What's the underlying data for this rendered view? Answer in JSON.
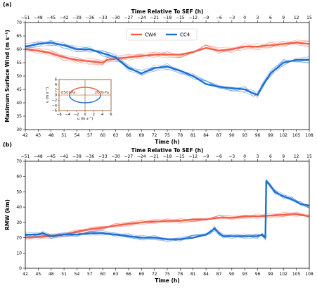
{
  "chart_data": [
    {
      "type": "line",
      "panel_label": "(a)",
      "xlabel": "Time (h)",
      "top_xlabel": "Time Relative To SEF (h)",
      "ylabel": "Maximum Surface Wind (m s⁻¹)",
      "xlim": [
        42,
        108
      ],
      "ylim": [
        30,
        70
      ],
      "x_ticks": [
        42,
        45,
        48,
        51,
        54,
        57,
        60,
        63,
        66,
        69,
        72,
        75,
        78,
        81,
        84,
        87,
        90,
        93,
        96,
        99,
        102,
        105,
        108
      ],
      "top_ticks": [
        -51,
        -48,
        -45,
        -42,
        -39,
        -36,
        -33,
        -30,
        -27,
        -24,
        -21,
        -18,
        -15,
        -12,
        -9,
        -6,
        -3,
        0,
        3,
        6,
        9,
        12,
        15
      ],
      "y_ticks": [
        30,
        35,
        40,
        45,
        50,
        55,
        60,
        65,
        70
      ],
      "legend_position": "top-center",
      "grid": false,
      "series": [
        {
          "name": "CW4",
          "color": "#f0604a",
          "x": [
            42,
            45,
            48,
            51,
            54,
            57,
            60,
            61,
            63,
            66,
            69,
            72,
            75,
            78,
            81,
            84,
            87,
            90,
            93,
            96,
            99,
            102,
            105,
            108
          ],
          "y": [
            60,
            59.5,
            58.5,
            57,
            56,
            55.5,
            55,
            56,
            56.5,
            57,
            57.5,
            58,
            58,
            58,
            59,
            60.5,
            59.5,
            60,
            61,
            61,
            61.5,
            62,
            62.5,
            62
          ]
        },
        {
          "name": "CC4",
          "color": "#1c6fd2",
          "x": [
            42,
            45,
            48,
            51,
            54,
            57,
            60,
            63,
            66,
            69,
            72,
            75,
            78,
            81,
            84,
            87,
            90,
            93,
            95,
            96,
            97,
            99,
            102,
            105,
            108
          ],
          "y": [
            61,
            62,
            62.5,
            61.5,
            60,
            60,
            58.5,
            57,
            53,
            51,
            53,
            53.5,
            52,
            50,
            47,
            46,
            45.5,
            45,
            43.5,
            43,
            46,
            51,
            55,
            56,
            56
          ]
        }
      ],
      "inset": {
        "xlabel": "u (m s⁻¹)",
        "ylabel": "v (m s⁻¹)",
        "xlim": [
          -6,
          6
        ],
        "ylim": [
          -6,
          6
        ],
        "x_ticks": [
          -6,
          -4,
          -2,
          0,
          2,
          4,
          6
        ],
        "y_ticks": [
          -6,
          -4,
          -2,
          0,
          2,
          4,
          6
        ],
        "label_left": "850hPa",
        "label_right": "200hPa",
        "ellipse_rx": 3.6,
        "ellipse_ry": 3.0,
        "upper_color": "#f0604a",
        "lower_color": "#1c6fd2"
      }
    },
    {
      "type": "line",
      "panel_label": "(b)",
      "xlabel": "Time (h)",
      "top_xlabel": "Time Relative To SEF (h)",
      "ylabel": "RMW (km)",
      "xlim": [
        42,
        108
      ],
      "ylim": [
        0,
        70
      ],
      "x_ticks": [
        42,
        45,
        48,
        51,
        54,
        57,
        60,
        63,
        66,
        69,
        72,
        75,
        78,
        81,
        84,
        87,
        90,
        93,
        96,
        99,
        102,
        105,
        108
      ],
      "top_ticks": [
        -51,
        -48,
        -45,
        -42,
        -39,
        -36,
        -33,
        -30,
        -27,
        -24,
        -21,
        -18,
        -15,
        -12,
        -9,
        -6,
        -3,
        0,
        3,
        6,
        9,
        12,
        15
      ],
      "y_ticks": [
        0,
        10,
        20,
        30,
        40,
        50,
        60,
        70
      ],
      "grid": false,
      "series": [
        {
          "name": "CW4",
          "color": "#f0604a",
          "x": [
            42,
            45,
            48,
            51,
            54,
            57,
            60,
            63,
            66,
            69,
            72,
            75,
            78,
            81,
            84,
            87,
            90,
            93,
            96,
            99,
            102,
            105,
            108
          ],
          "y": [
            20,
            20.5,
            21,
            22,
            24,
            25.5,
            26.5,
            28,
            29,
            30,
            30.5,
            31,
            31,
            32,
            32,
            33,
            33,
            34,
            34,
            34.5,
            35,
            35.5,
            34
          ]
        },
        {
          "name": "CC4",
          "color": "#1c6fd2",
          "x": [
            42,
            45,
            46,
            48,
            51,
            54,
            57,
            60,
            63,
            66,
            69,
            72,
            75,
            78,
            81,
            84,
            85,
            86,
            87,
            88,
            90,
            93,
            96,
            97,
            97.8,
            98,
            99,
            100,
            102,
            104,
            106,
            108
          ],
          "y": [
            22,
            22,
            23,
            21,
            22,
            22,
            23,
            23,
            22,
            21,
            20,
            20,
            19,
            19,
            20,
            22,
            24,
            26,
            23,
            21,
            21,
            21,
            21,
            22,
            20,
            57,
            54,
            50,
            47,
            45,
            42,
            41
          ]
        }
      ]
    }
  ]
}
